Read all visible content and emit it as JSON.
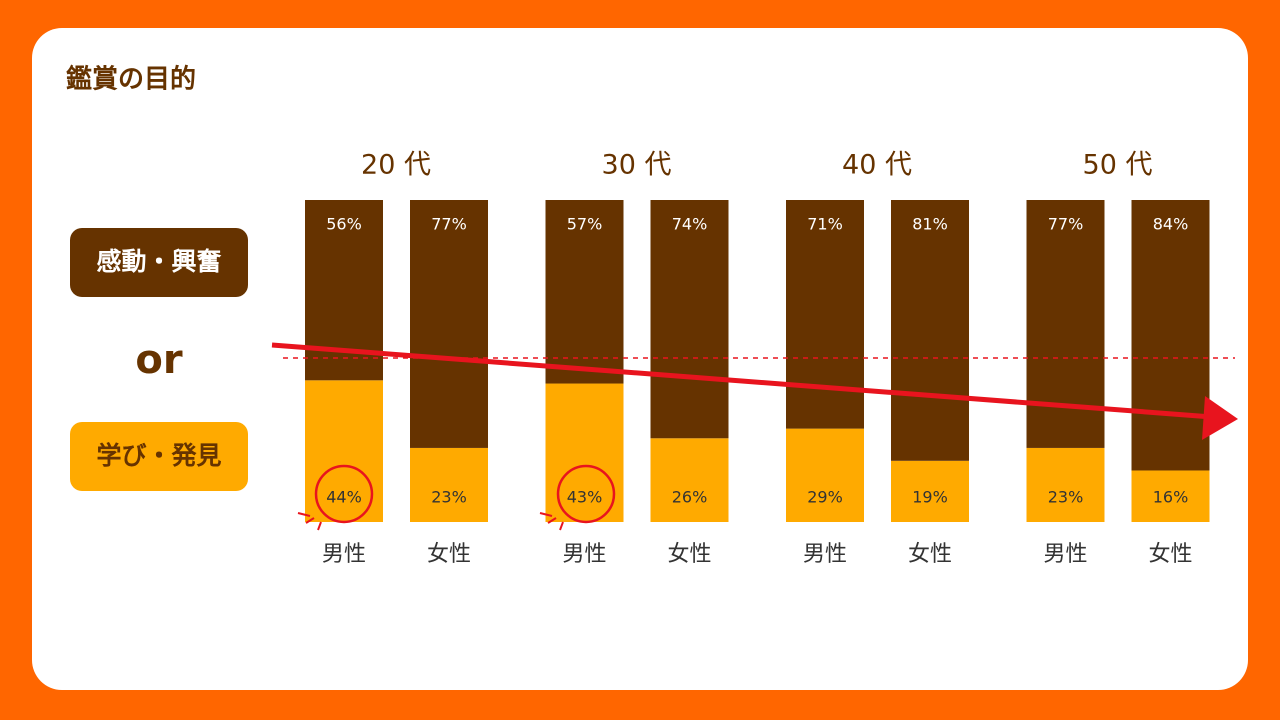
{
  "chart_data": {
    "type": "stacked_bar",
    "title": "鑑賞の目的",
    "groups": [
      "20 代",
      "30 代",
      "40 代",
      "50 代"
    ],
    "categories": [
      "男性",
      "女性",
      "男性",
      "女性",
      "男性",
      "女性",
      "男性",
      "女性"
    ],
    "series": [
      {
        "name": "学び・発見",
        "color": "#ffaa00",
        "label_color": "#333333",
        "values": [
          44,
          23,
          43,
          26,
          29,
          19,
          23,
          16
        ],
        "value_labels": [
          "44%",
          "23%",
          "43%",
          "26%",
          "29%",
          "19%",
          "23%",
          "16%"
        ]
      },
      {
        "name": "感動・興奮",
        "color": "#663300",
        "label_color": "#ffffff",
        "values": [
          56,
          77,
          57,
          74,
          71,
          81,
          77,
          84
        ],
        "value_labels": [
          "56%",
          "77%",
          "57%",
          "74%",
          "71%",
          "81%",
          "77%",
          "84%"
        ]
      }
    ],
    "legend_separator": "or",
    "ylim": [
      0,
      100
    ]
  }
}
